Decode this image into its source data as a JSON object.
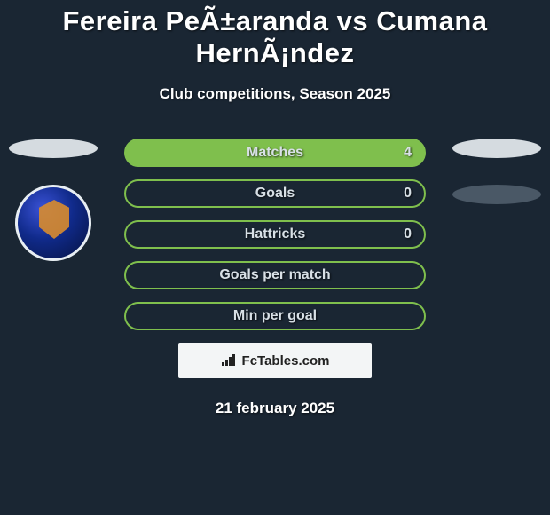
{
  "title": "Fereira PeÃ±aranda vs Cumana HernÃ¡ndez",
  "subtitle": "Club competitions, Season 2025",
  "date": "21 february 2025",
  "watermark": "FcTables.com",
  "colors": {
    "accent": "#7fbf4d",
    "ellipse_light": "#d5dbe0",
    "ellipse_dark": "#4a5866"
  },
  "stats": [
    {
      "label": "Matches",
      "value": "4",
      "fill": 1.0
    },
    {
      "label": "Goals",
      "value": "0",
      "fill": 0.0
    },
    {
      "label": "Hattricks",
      "value": "0",
      "fill": 0.0
    },
    {
      "label": "Goals per match",
      "value": "",
      "fill": 0.0
    },
    {
      "label": "Min per goal",
      "value": "",
      "fill": 0.0
    }
  ]
}
